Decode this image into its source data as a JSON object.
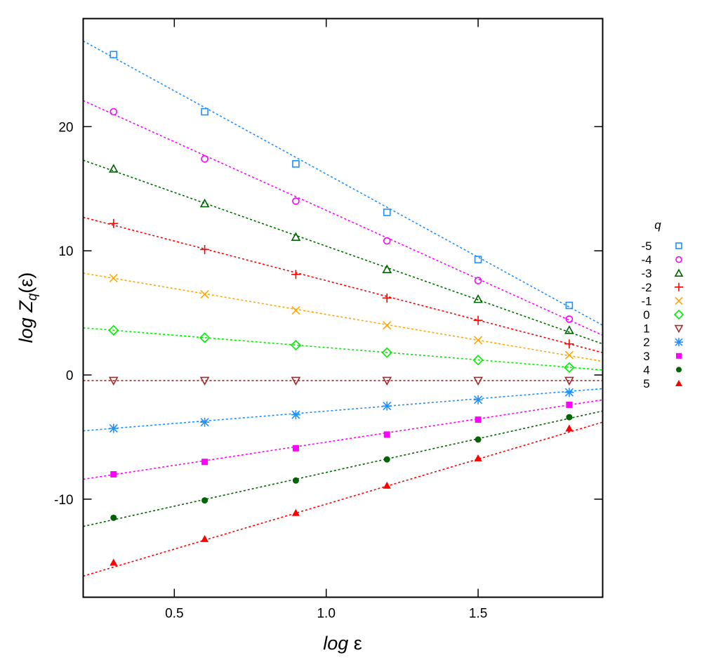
{
  "chart_data": {
    "type": "scatter",
    "title": "",
    "xlabel": "log ε",
    "ylabel": "log Z_q(ε)",
    "xlim": [
      0.2,
      1.91
    ],
    "ylim": [
      -17.9,
      28.7
    ],
    "xticks": [
      0.5,
      1.0,
      1.5
    ],
    "xtick_labels": [
      "0.5",
      "1.0",
      "1.5"
    ],
    "yticks": [
      -10,
      0,
      10,
      20
    ],
    "ytick_labels": [
      "-10",
      "0",
      "10",
      "20"
    ],
    "grid": false,
    "legend_position": "right-outside",
    "legend_title": "q",
    "x": [
      0.3,
      0.6,
      0.9,
      1.2,
      1.5,
      1.8
    ],
    "series": [
      {
        "name": "-5",
        "marker": "square-open",
        "color": "#1E90FF",
        "values": [
          25.8,
          21.2,
          17.0,
          13.1,
          9.3,
          5.6
        ],
        "fit": [
          [
            0.2,
            26.9
          ],
          [
            1.91,
            4.0
          ]
        ]
      },
      {
        "name": "-4",
        "marker": "circle-open",
        "color": "#FF00FF",
        "values": [
          21.2,
          17.4,
          14.0,
          10.8,
          7.6,
          4.5
        ],
        "fit": [
          [
            0.2,
            22.1
          ],
          [
            1.91,
            3.2
          ]
        ]
      },
      {
        "name": "-3",
        "marker": "triangle-open",
        "color": "#006400",
        "values": [
          16.6,
          13.8,
          11.1,
          8.5,
          6.1,
          3.6
        ],
        "fit": [
          [
            0.2,
            17.3
          ],
          [
            1.91,
            2.5
          ]
        ]
      },
      {
        "name": "-2",
        "marker": "plus",
        "color": "#FF0000",
        "values": [
          12.2,
          10.1,
          8.1,
          6.2,
          4.4,
          2.5
        ],
        "fit": [
          [
            0.2,
            12.7
          ],
          [
            1.91,
            1.8
          ]
        ]
      },
      {
        "name": "-1",
        "marker": "cross",
        "color": "#FFA500",
        "values": [
          7.8,
          6.5,
          5.2,
          4.0,
          2.8,
          1.6
        ],
        "fit": [
          [
            0.2,
            8.2
          ],
          [
            1.91,
            1.1
          ]
        ]
      },
      {
        "name": "0",
        "marker": "diamond-open",
        "color": "#00EE00",
        "values": [
          3.6,
          3.0,
          2.4,
          1.8,
          1.2,
          0.6
        ],
        "fit": [
          [
            0.2,
            3.8
          ],
          [
            1.91,
            0.4
          ]
        ]
      },
      {
        "name": "1",
        "marker": "triangle-down-open",
        "color": "#A52A2A",
        "values": [
          -0.45,
          -0.45,
          -0.45,
          -0.45,
          -0.45,
          -0.45
        ],
        "fit": [
          [
            0.2,
            -0.45
          ],
          [
            1.91,
            -0.45
          ]
        ]
      },
      {
        "name": "2",
        "marker": "star",
        "color": "#1E90FF",
        "values": [
          -4.3,
          -3.8,
          -3.2,
          -2.5,
          -2.0,
          -1.4
        ],
        "fit": [
          [
            0.2,
            -4.5
          ],
          [
            1.91,
            -1.1
          ]
        ]
      },
      {
        "name": "3",
        "marker": "square-filled",
        "color": "#FF00FF",
        "values": [
          -8.0,
          -7.0,
          -5.9,
          -4.8,
          -3.6,
          -2.4
        ],
        "fit": [
          [
            0.2,
            -8.4
          ],
          [
            1.91,
            -2.0
          ]
        ]
      },
      {
        "name": "4",
        "marker": "circle-filled",
        "color": "#006400",
        "values": [
          -11.5,
          -10.1,
          -8.5,
          -6.8,
          -5.2,
          -3.4
        ],
        "fit": [
          [
            0.2,
            -12.2
          ],
          [
            1.91,
            -2.9
          ]
        ]
      },
      {
        "name": "5",
        "marker": "triangle-filled",
        "color": "#FF0000",
        "values": [
          -15.1,
          -13.2,
          -11.1,
          -8.9,
          -6.7,
          -4.3
        ],
        "fit": [
          [
            0.2,
            -16.2
          ],
          [
            1.91,
            -3.8
          ]
        ]
      }
    ]
  },
  "labels": {
    "xlabel_italic": "log",
    "xlabel_symbol": " ε",
    "ylabel_italic": "log Z",
    "ylabel_sub": "q",
    "ylabel_tail": "(ε)"
  }
}
